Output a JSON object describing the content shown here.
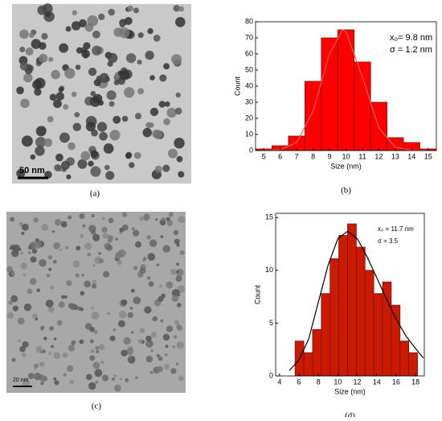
{
  "panels": {
    "a": {
      "label": "(a)",
      "scale_bar": "50 nm"
    },
    "c": {
      "label": "(c)",
      "scale_bar": "20 nm"
    }
  },
  "chart_data": [
    {
      "type": "histogram",
      "label": "(b)",
      "xlabel": "Size (nm)",
      "ylabel": "Count",
      "annotations": [
        "x₀= 9.8 nm",
        "σ = 1.2 nm"
      ],
      "bins": [
        4.5,
        5.5,
        6.5,
        7.5,
        8.5,
        9.5,
        10.5,
        11.5,
        12.5,
        13.5,
        14.5,
        15.5
      ],
      "values": [
        1,
        3,
        9,
        43,
        70,
        75,
        55,
        30,
        8,
        5,
        1
      ],
      "color": "#ff0000",
      "edge_color": "#7a1a10",
      "curve_color": "#e06060",
      "curve": {
        "x": [
          5,
          6,
          7,
          8,
          9,
          9.8,
          10,
          11,
          12,
          13,
          14,
          15
        ],
        "y": [
          0,
          0.5,
          5,
          24.4,
          60,
          75,
          74,
          45.5,
          14,
          2.1,
          0.2,
          0
        ]
      },
      "xlim": [
        4.5,
        15.5
      ],
      "ylim": [
        0,
        80
      ],
      "xticks": [
        5,
        6,
        7,
        8,
        9,
        10,
        11,
        12,
        13,
        14,
        15
      ],
      "yticks": [
        0,
        10,
        20,
        30,
        40,
        50,
        60,
        70,
        80
      ]
    },
    {
      "type": "histogram",
      "label": "(d)",
      "xlabel": "Size (nm)",
      "ylabel": "Count",
      "annotations": [
        "x₀ = 11.7 nm",
        "σ = 3.5"
      ],
      "bins": [
        5.6,
        6.5,
        7.4,
        8.3,
        9.2,
        10.1,
        11.0,
        11.9,
        12.8,
        13.7,
        14.6,
        15.5,
        16.4,
        17.3,
        18.2
      ],
      "values": [
        3.3,
        2.2,
        4.4,
        7.8,
        11.1,
        13.3,
        14.4,
        12.2,
        10.0,
        7.8,
        8.9,
        6.7,
        3.3,
        2.2
      ],
      "color": "#cc1a00",
      "edge_color": "#6a1a10",
      "curve_color": "#000000",
      "curve": {
        "x": [
          5,
          6,
          7,
          8,
          9,
          10,
          11,
          12,
          13,
          14,
          15,
          16,
          17,
          18,
          18.8
        ],
        "y": [
          0.5,
          1.5,
          3.5,
          7,
          10.5,
          13,
          13.7,
          13,
          11.3,
          9.3,
          7.3,
          5.4,
          3.8,
          2.6,
          1.7
        ]
      },
      "xlim": [
        3.6,
        18.9
      ],
      "ylim": [
        0,
        15.4
      ],
      "xticks": [
        4,
        6,
        8,
        10,
        12,
        14,
        16,
        18
      ],
      "yticks": [
        0,
        5,
        10,
        15
      ]
    }
  ]
}
